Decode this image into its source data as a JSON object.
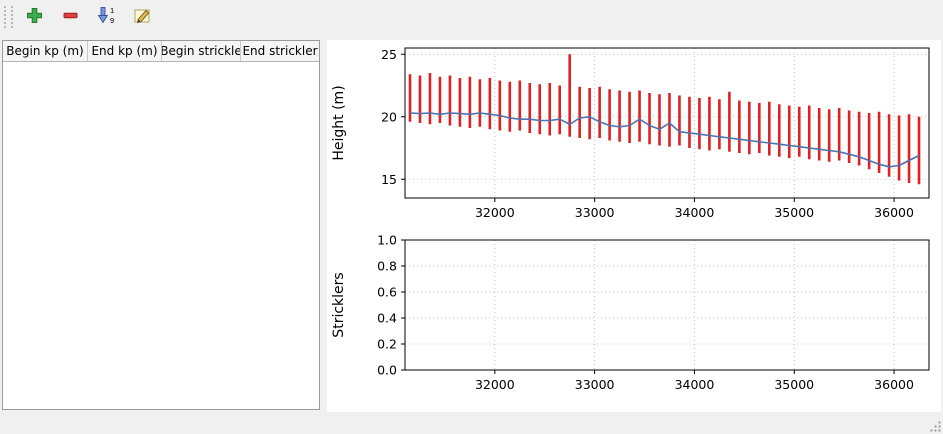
{
  "toolbar": {
    "buttons": [
      {
        "id": "add",
        "icon": "plus-icon"
      },
      {
        "id": "remove",
        "icon": "minus-icon"
      },
      {
        "id": "sort",
        "icon": "sort-numeric-icon",
        "digit_top": "1",
        "digit_bottom": "9"
      },
      {
        "id": "edit",
        "icon": "edit-pen-icon"
      }
    ]
  },
  "table": {
    "headers": [
      "Begin kp (m)",
      "End kp (m)",
      "Begin strickle",
      "End strickler"
    ],
    "rows": []
  },
  "chart_data": [
    {
      "type": "line",
      "title": "",
      "xlabel": "",
      "ylabel": "Height (m)",
      "xlim": [
        31100,
        36350
      ],
      "ylim": [
        13.5,
        25.5
      ],
      "xticks": [
        32000,
        33000,
        34000,
        35000,
        36000
      ],
      "xtick_labels": [
        "32000",
        "33000",
        "34000",
        "35000",
        "36000"
      ],
      "yticks": [
        15,
        20,
        25
      ],
      "ytick_labels": [
        "15",
        "20",
        "25"
      ],
      "grid": true,
      "legend": "none",
      "series": [
        {
          "name": "section-extent-bars",
          "kind": "errorbar",
          "color": "#dd2222",
          "x": [
            31150,
            31250,
            31350,
            31450,
            31550,
            31650,
            31750,
            31850,
            31950,
            32050,
            32150,
            32250,
            32350,
            32450,
            32550,
            32650,
            32750,
            32850,
            32950,
            33050,
            33150,
            33250,
            33350,
            33450,
            33550,
            33650,
            33750,
            33850,
            33950,
            34050,
            34150,
            34250,
            34350,
            34450,
            34550,
            34650,
            34750,
            34850,
            34950,
            35050,
            35150,
            35250,
            35350,
            35450,
            35550,
            35650,
            35750,
            35850,
            35950,
            36050,
            36150,
            36250
          ],
          "top": [
            23.4,
            23.3,
            23.5,
            23.2,
            23.3,
            23.1,
            23.2,
            23.0,
            23.1,
            22.9,
            22.8,
            22.9,
            22.7,
            22.6,
            22.7,
            22.5,
            25.0,
            22.4,
            22.3,
            22.4,
            22.2,
            22.1,
            22.0,
            22.1,
            21.9,
            21.8,
            21.9,
            21.7,
            21.6,
            21.5,
            21.6,
            21.4,
            22.0,
            21.3,
            21.2,
            21.1,
            21.2,
            21.0,
            20.9,
            20.8,
            20.9,
            20.7,
            20.6,
            20.7,
            20.5,
            20.4,
            20.3,
            20.4,
            20.2,
            20.1,
            20.2,
            20.0
          ],
          "bottom": [
            19.6,
            19.5,
            19.4,
            19.5,
            19.3,
            19.2,
            19.1,
            19.2,
            19.0,
            18.9,
            18.8,
            18.9,
            18.7,
            18.6,
            18.5,
            18.6,
            18.4,
            18.3,
            18.2,
            18.3,
            18.1,
            18.0,
            17.9,
            18.0,
            17.8,
            17.7,
            17.6,
            17.7,
            17.5,
            17.4,
            17.3,
            17.4,
            17.2,
            17.1,
            17.0,
            17.1,
            16.9,
            16.8,
            16.7,
            16.8,
            16.6,
            16.5,
            16.4,
            16.5,
            16.3,
            16.1,
            15.8,
            15.5,
            15.2,
            14.9,
            14.7,
            14.6
          ]
        },
        {
          "name": "mean-height-line",
          "kind": "line",
          "color": "#4c72b0",
          "x": [
            31150,
            31250,
            31350,
            31450,
            31550,
            31650,
            31750,
            31850,
            31950,
            32050,
            32150,
            32250,
            32350,
            32450,
            32550,
            32650,
            32750,
            32850,
            32950,
            33050,
            33150,
            33250,
            33350,
            33450,
            33550,
            33650,
            33750,
            33850,
            33950,
            34050,
            34150,
            34250,
            34350,
            34450,
            34550,
            34650,
            34750,
            34850,
            34950,
            35050,
            35150,
            35250,
            35350,
            35450,
            35550,
            35650,
            35750,
            35850,
            35950,
            36050,
            36150,
            36250
          ],
          "y": [
            20.3,
            20.25,
            20.3,
            20.2,
            20.3,
            20.25,
            20.2,
            20.3,
            20.2,
            20.1,
            19.9,
            19.8,
            19.8,
            19.7,
            19.7,
            19.8,
            19.4,
            19.9,
            20.0,
            19.6,
            19.3,
            19.2,
            19.3,
            19.8,
            19.3,
            19.0,
            19.5,
            18.8,
            18.7,
            18.6,
            18.5,
            18.4,
            18.3,
            18.2,
            18.1,
            18.0,
            17.9,
            17.8,
            17.7,
            17.6,
            17.5,
            17.4,
            17.3,
            17.2,
            17.0,
            16.8,
            16.5,
            16.2,
            16.0,
            16.1,
            16.5,
            16.9
          ]
        }
      ]
    },
    {
      "type": "line",
      "title": "",
      "xlabel": "",
      "ylabel": "Stricklers",
      "xlim": [
        31100,
        36350
      ],
      "ylim": [
        0.0,
        1.0
      ],
      "xticks": [
        32000,
        33000,
        34000,
        35000,
        36000
      ],
      "xtick_labels": [
        "32000",
        "33000",
        "34000",
        "35000",
        "36000"
      ],
      "yticks": [
        0.0,
        0.2,
        0.4,
        0.6,
        0.8,
        1.0
      ],
      "ytick_labels": [
        "0.0",
        "0.2",
        "0.4",
        "0.6",
        "0.8",
        "1.0"
      ],
      "grid": true,
      "legend": "none",
      "series": []
    }
  ]
}
